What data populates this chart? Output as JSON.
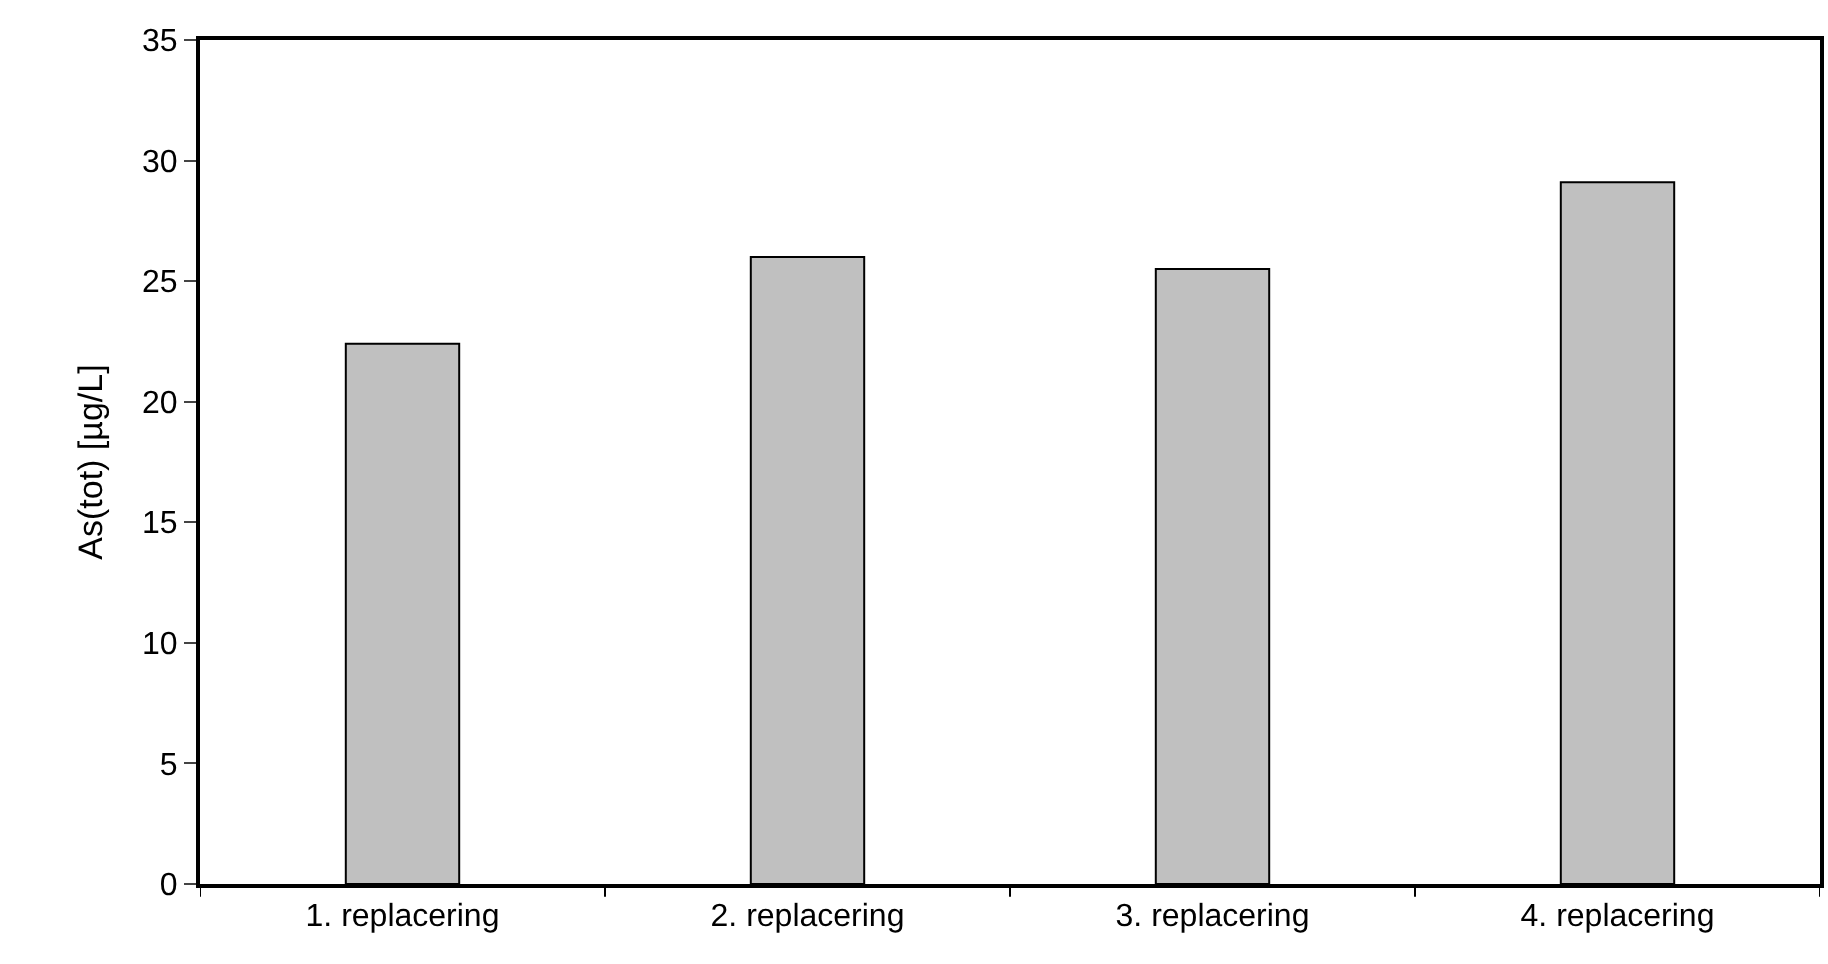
{
  "chart_data": {
    "type": "bar",
    "ylabel": "As(tot) [µg/L]",
    "categories": [
      "1. replacering",
      "2. replacering",
      "3. replacering",
      "4. replacering"
    ],
    "values": [
      22.4,
      26.0,
      25.5,
      29.1
    ],
    "color": "#c0c0c0",
    "ylim": [
      0,
      35
    ],
    "yticks": [
      0,
      5,
      10,
      15,
      20,
      25,
      30,
      35
    ]
  }
}
